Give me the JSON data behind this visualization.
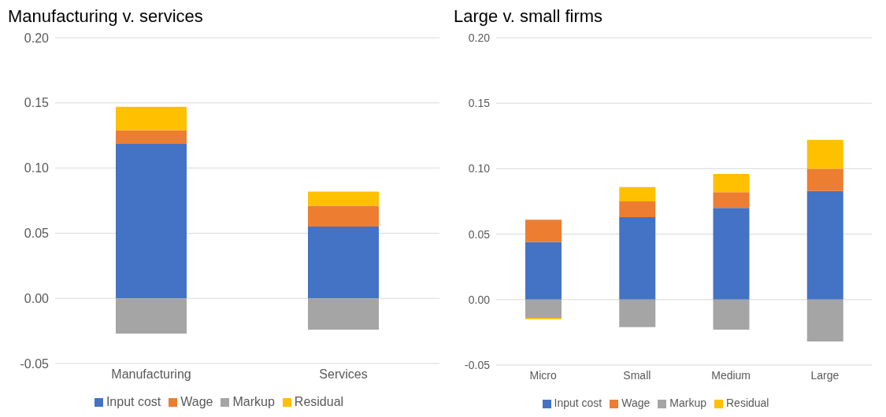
{
  "chart_data": [
    {
      "type": "bar",
      "title": "Manufacturing v. services",
      "stacked": true,
      "categories": [
        "Manufacturing",
        "Services"
      ],
      "series": [
        {
          "name": "Input cost",
          "color": "#4472c4",
          "values": [
            0.119,
            0.055
          ]
        },
        {
          "name": "Wage",
          "color": "#ed7d31",
          "values": [
            0.01,
            0.016
          ]
        },
        {
          "name": "Markup",
          "color": "#a5a5a5",
          "values": [
            -0.027,
            -0.024
          ]
        },
        {
          "name": "Residual",
          "color": "#ffc000",
          "values": [
            0.018,
            0.011
          ]
        }
      ],
      "ylim": [
        -0.05,
        0.2
      ],
      "yticks": [
        {
          "value": -0.05,
          "label": "-0.05"
        },
        {
          "value": 0,
          "label": "0.00"
        },
        {
          "value": 0.05,
          "label": "0.05"
        },
        {
          "value": 0.1,
          "label": "0.10"
        },
        {
          "value": 0.15,
          "label": "0.15"
        },
        {
          "value": 0.2,
          "label": "0.20"
        }
      ],
      "grid": "y",
      "legend": "bottom"
    },
    {
      "type": "bar",
      "title": "Large v. small firms",
      "stacked": true,
      "categories": [
        "Micro",
        "Small",
        "Medium",
        "Large"
      ],
      "series": [
        {
          "name": "Input cost",
          "color": "#4472c4",
          "values": [
            0.044,
            0.063,
            0.07,
            0.083
          ]
        },
        {
          "name": "Wage",
          "color": "#ed7d31",
          "values": [
            0.017,
            0.012,
            0.012,
            0.017
          ]
        },
        {
          "name": "Markup",
          "color": "#a5a5a5",
          "values": [
            -0.014,
            -0.021,
            -0.023,
            -0.032
          ]
        },
        {
          "name": "Residual",
          "color": "#ffc000",
          "values": [
            -0.001,
            0.011,
            0.014,
            0.022
          ]
        }
      ],
      "ylim": [
        -0.05,
        0.2
      ],
      "yticks": [
        {
          "value": -0.05,
          "label": "-0.05"
        },
        {
          "value": 0,
          "label": "0.00"
        },
        {
          "value": 0.05,
          "label": "0.05"
        },
        {
          "value": 0.1,
          "label": "0.10"
        },
        {
          "value": 0.15,
          "label": "0.15"
        },
        {
          "value": 0.2,
          "label": "0.20"
        }
      ],
      "grid": "y",
      "legend": "bottom"
    }
  ]
}
